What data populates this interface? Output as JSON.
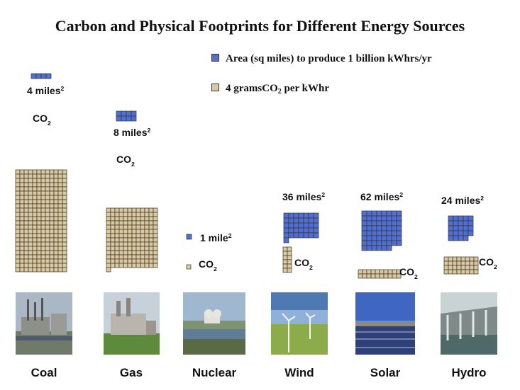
{
  "chart_data": {
    "type": "pictograph",
    "title": "Carbon and Physical Footprints for Different Energy Sources",
    "legend": [
      {
        "key": "area",
        "label": "Area (sq miles) to produce 1 billion kWhrs/yr",
        "color": "#4f6fd8"
      },
      {
        "key": "co2",
        "label": "4 gramsCO",
        "label_sub": "2",
        "label_after": " per kWhr",
        "color": "#d9caa4"
      }
    ],
    "area_unit": "miles",
    "area_unit_singular": "mile",
    "area_unit_sup": "2",
    "co2_label": "CO",
    "co2_sub": "2",
    "categories": [
      "Coal",
      "Gas",
      "Nuclear",
      "Wind",
      "Solar",
      "Hydro"
    ],
    "area_sq_miles": [
      4,
      8,
      1,
      36,
      62,
      24
    ],
    "co2_units": [
      288,
      169,
      1,
      12,
      20,
      32
    ]
  },
  "colors": {
    "area_fill": "#4f6fd8",
    "co2_fill": "#d9caa4",
    "grid_line": "#3a3320"
  }
}
